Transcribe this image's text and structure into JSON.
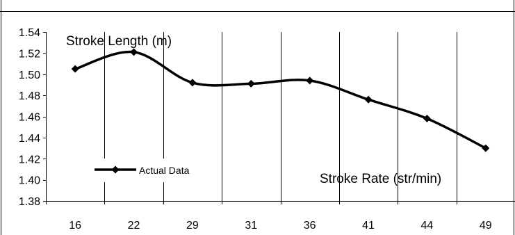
{
  "chart_data": {
    "type": "line",
    "categories": [
      "16",
      "22",
      "29",
      "31",
      "36",
      "41",
      "44",
      "49"
    ],
    "series": [
      {
        "name": "Actual Data",
        "values": [
          1.505,
          1.521,
          1.492,
          1.491,
          1.494,
          1.476,
          1.458,
          1.43
        ]
      }
    ],
    "ylim": [
      1.38,
      1.54
    ],
    "yticks": [
      "1.38",
      "1.40",
      "1.42",
      "1.44",
      "1.46",
      "1.48",
      "1.50",
      "1.52",
      "1.54"
    ],
    "ylabel": "Stroke Length (m)",
    "xlabel": "Stroke Rate (str/min)",
    "grid": "vertical",
    "legend": "bottom-left",
    "smoothed": true,
    "colors": {
      "line": "#000000",
      "grid": "#000000",
      "background": "#ffffff"
    }
  }
}
